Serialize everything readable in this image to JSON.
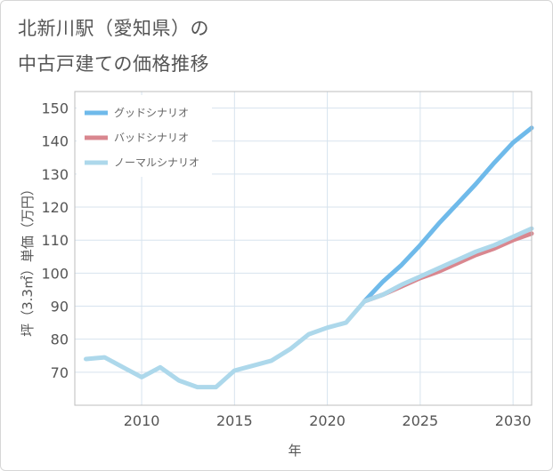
{
  "chart_data": {
    "type": "line",
    "title_line1": "北新川駅（愛知県）の",
    "title_line2": "中古戸建ての価格推移",
    "xlabel": "年",
    "ylabel": "坪（3.3㎡）単価（万円）",
    "xlim": [
      2006.4,
      2031.0
    ],
    "ylim": [
      60,
      155
    ],
    "x_ticks": [
      2010,
      2015,
      2020,
      2025,
      2030
    ],
    "y_ticks": [
      70,
      80,
      90,
      100,
      110,
      120,
      130,
      140,
      150
    ],
    "series": [
      {
        "name": "グッドシナリオ",
        "color": "#6fbaea",
        "x": [
          2022,
          2023,
          2024,
          2025,
          2026,
          2027,
          2028,
          2029,
          2030,
          2031
        ],
        "y": [
          91.5,
          97.5,
          102.5,
          108.5,
          115.0,
          121.0,
          127.0,
          133.5,
          139.5,
          144.0
        ]
      },
      {
        "name": "バッドシナリオ",
        "color": "#d9878f",
        "x": [
          2022,
          2023,
          2024,
          2025,
          2026,
          2027,
          2028,
          2029,
          2030,
          2031
        ],
        "y": [
          91.5,
          93.5,
          96.0,
          98.5,
          100.5,
          103.0,
          105.5,
          107.5,
          110.0,
          112.0
        ]
      },
      {
        "name": "ノーマルシナリオ",
        "color": "#add8eb",
        "x": [
          2007,
          2008,
          2009,
          2010,
          2011,
          2012,
          2013,
          2014,
          2015,
          2016,
          2017,
          2018,
          2019,
          2020,
          2021,
          2022,
          2023,
          2024,
          2025,
          2026,
          2027,
          2028,
          2029,
          2030,
          2031
        ],
        "y": [
          74.0,
          74.5,
          71.5,
          68.5,
          71.5,
          67.5,
          65.5,
          65.5,
          70.5,
          72.0,
          73.5,
          77.0,
          81.5,
          83.5,
          85.0,
          91.5,
          93.5,
          96.5,
          99.0,
          101.5,
          104.0,
          106.5,
          108.5,
          111.0,
          113.5
        ]
      }
    ]
  }
}
